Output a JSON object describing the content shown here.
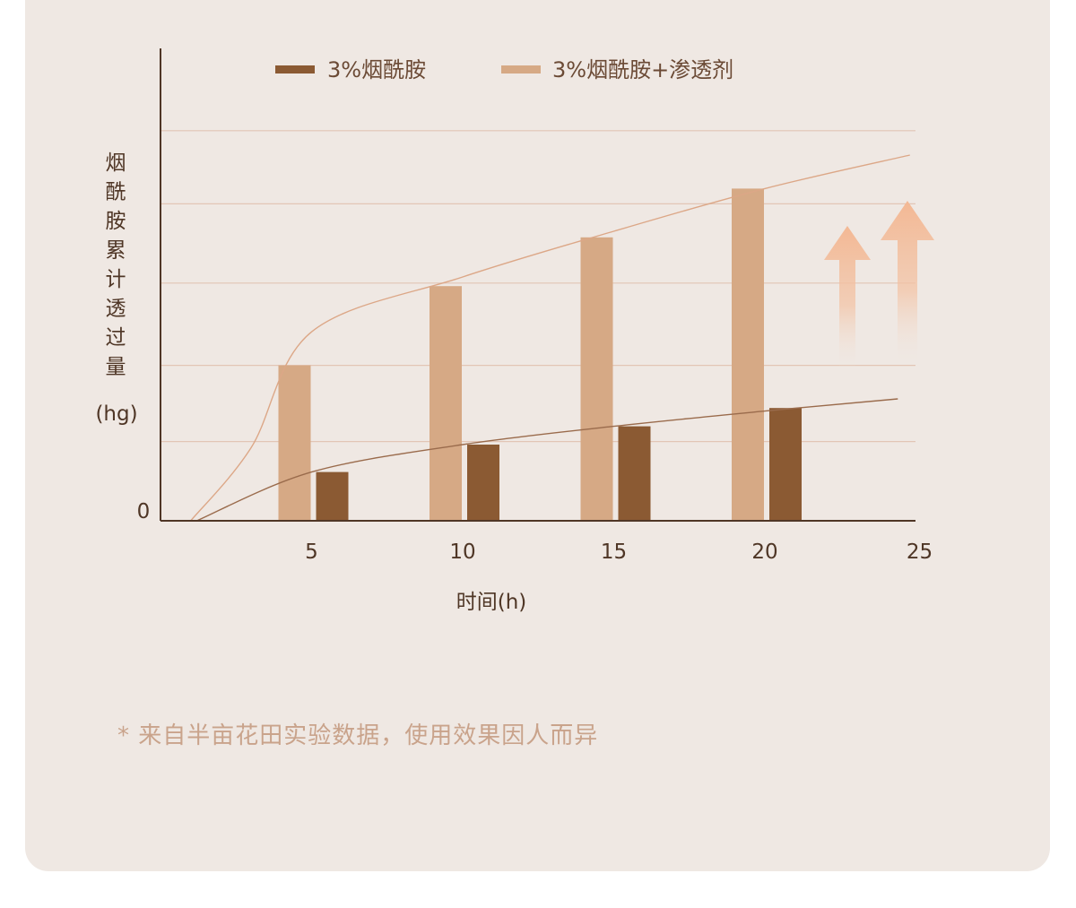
{
  "chart_data": {
    "type": "bar",
    "categories": [
      "5",
      "10",
      "15",
      "20"
    ],
    "x_ticks": [
      "5",
      "10",
      "15",
      "20",
      "25"
    ],
    "y_zero_label": "0",
    "xlabel": "时间(h)",
    "ylabel": [
      "烟",
      "酰",
      "胺",
      "累",
      "计",
      "透",
      "过",
      "量"
    ],
    "yunit": "(hg)",
    "series": [
      {
        "name": "3%烟酰胺",
        "color": "#8b5a33",
        "values": [
          1.6,
          2.5,
          3.1,
          3.7
        ]
      },
      {
        "name": "3%烟酰胺+渗透剂",
        "color": "#d6a985",
        "values": [
          5.1,
          7.7,
          9.3,
          10.9
        ]
      }
    ],
    "trend_lines": [
      {
        "series": "3%烟酰胺+渗透剂",
        "color": "#dca787",
        "points": [
          [
            1,
            0
          ],
          [
            3,
            2.4
          ],
          [
            5,
            6.2
          ],
          [
            10,
            8.0
          ],
          [
            15,
            9.5
          ],
          [
            20,
            10.9
          ],
          [
            24.8,
            12.0
          ]
        ]
      },
      {
        "series": "3%烟酰胺",
        "color": "#9a6b4c",
        "points": [
          [
            1.2,
            0
          ],
          [
            5,
            1.6
          ],
          [
            10,
            2.5
          ],
          [
            15,
            3.1
          ],
          [
            20,
            3.6
          ],
          [
            24.4,
            4.0
          ]
        ]
      }
    ],
    "ylim": [
      0,
      13
    ],
    "xlim": [
      0,
      25
    ],
    "gridlines_y": [
      2.6,
      5.1,
      7.8,
      10.4,
      12.8
    ],
    "grid": true,
    "legend_position": "top",
    "annotations": [
      "increase arrows"
    ]
  },
  "footnote": "* 来自半亩花田实验数据，使用效果因人而异",
  "colors": {
    "background": "#efe8e3",
    "axis": "#4f3626",
    "grid": "#e2c5b5",
    "arrow": "#f3b894"
  }
}
